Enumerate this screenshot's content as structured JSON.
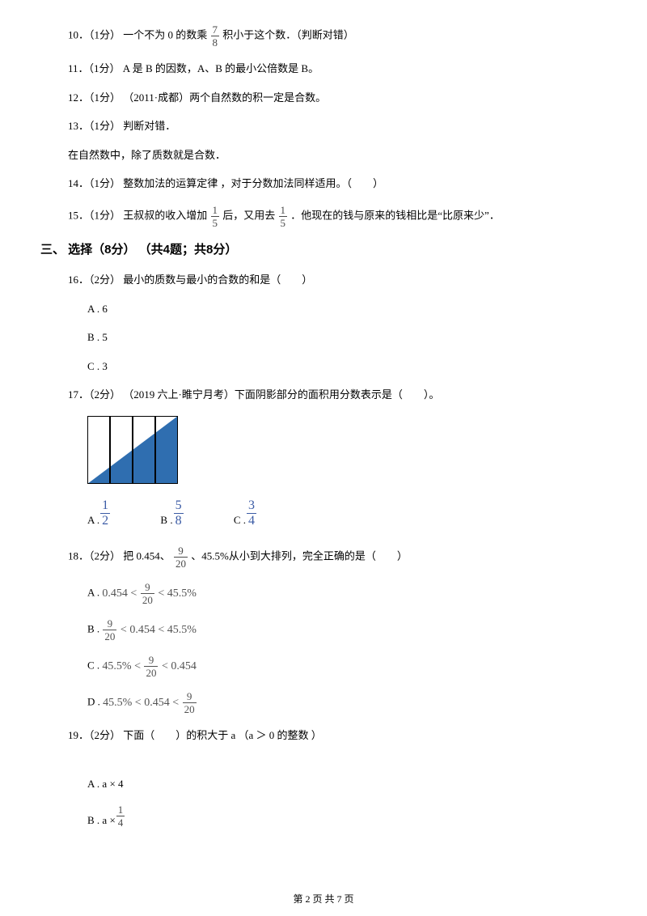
{
  "q10": {
    "prefix": "10．（1分） 一个不为 0 的数乘",
    "frac": {
      "n": "7",
      "d": "8"
    },
    "after": "积小于这个数．（判断对错）"
  },
  "q11": {
    "text": "11．（1分） A 是 B 的因数，A、B 的最小公倍数是 B。"
  },
  "q12": {
    "text": "12．（1分） （2011·成都）两个自然数的积一定是合数。"
  },
  "q13": {
    "text": "13．（1分） 判断对错．"
  },
  "q13b": {
    "text": "在自然数中，除了质数就是合数．"
  },
  "q14": {
    "text": "14．（1分） 整数加法的运算定律 ，对于分数加法同样适用。（　　）"
  },
  "q15": {
    "prefix": "15．（1分） 王叔叔的收入增加 ",
    "f1": {
      "n": "1",
      "d": "5"
    },
    "mid": " 后，又用去 ",
    "f2": {
      "n": "1",
      "d": "5"
    },
    "after": " ．他现在的钱与原来的钱相比是“比原来少”．"
  },
  "section3": "三、 选择（8分） （共4题；共8分）",
  "q16": {
    "text": "16．（2分） 最小的质数与最小的合数的和是（　　）",
    "A": "A . 6",
    "B": "B . 5",
    "C": "C . 3"
  },
  "q17": {
    "text": "17．（2分） （2019 六上·睢宁月考）下面阴影部分的面积用分数表示是（　　）。",
    "diagram": {
      "width": 112,
      "height": 84,
      "cols": 4,
      "fill": "#2f6eb0",
      "stroke": "#000000",
      "white": "#ffffff"
    },
    "A": {
      "label": "A . ",
      "n": "1",
      "d": "2"
    },
    "B": {
      "label": "B . ",
      "n": "5",
      "d": "8"
    },
    "C": {
      "label": "C . ",
      "n": "3",
      "d": "4"
    }
  },
  "q18": {
    "prefix": "18．（2分） 把 0.454、 ",
    "frac": {
      "n": "9",
      "d": "20"
    },
    "after": " 、45.5%从小到大排列，完全正确的是（　　）",
    "A": {
      "label": "A . ",
      "expr": [
        "0.454",
        " < ",
        {
          "n": "9",
          "d": "20"
        },
        " < 45.5%"
      ]
    },
    "B": {
      "label": "B . ",
      "expr": [
        {
          "n": "9",
          "d": "20"
        },
        " < 0.454 < 45.5%"
      ]
    },
    "C": {
      "label": "C . ",
      "expr": [
        "45.5% < ",
        {
          "n": "9",
          "d": "20"
        },
        " < 0.454"
      ]
    },
    "D": {
      "label": "D . ",
      "expr": [
        "45.5% < 0.454 < ",
        {
          "n": "9",
          "d": "20"
        }
      ]
    }
  },
  "q19": {
    "text": "19．（2分） 下面（　　）的积大于 a  （a ＞ 0 的整数 ）",
    "A": "A . a × 4",
    "B": {
      "label": "B . a × ",
      "n": "1",
      "d": "4"
    }
  },
  "footer": "第 2 页 共 7 页"
}
